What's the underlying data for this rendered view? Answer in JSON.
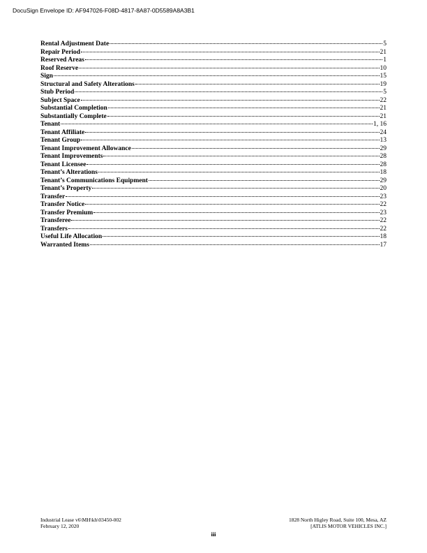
{
  "envelope": "DocuSign Envelope ID: AF947026-F08D-4817-8A87-0D5589A8A3B1",
  "entries": [
    {
      "term": "Rental Adjustment Date",
      "page": "5"
    },
    {
      "term": "Repair Period",
      "page": "21"
    },
    {
      "term": "Reserved Areas",
      "page": "1"
    },
    {
      "term": "Roof Reserve",
      "page": "10"
    },
    {
      "term": "Sign",
      "page": "15"
    },
    {
      "term": "Structural and Safety Alterations",
      "page": "19"
    },
    {
      "term": "Stub Period",
      "page": "5"
    },
    {
      "term": "Subject Space",
      "page": "22"
    },
    {
      "term": "Substantial Completion",
      "page": "21"
    },
    {
      "term": "Substantially Complete",
      "page": "21"
    },
    {
      "term": "Tenant",
      "page": "1, 16"
    },
    {
      "term": "Tenant Affiliate",
      "page": "24"
    },
    {
      "term": "Tenant Group",
      "page": "13"
    },
    {
      "term": "Tenant Improvement Allowance",
      "page": "29"
    },
    {
      "term": "Tenant Improvements",
      "page": "28"
    },
    {
      "term": "Tenant Licensee",
      "page": "28"
    },
    {
      "term": "Tenant’s Alterations",
      "page": "18"
    },
    {
      "term": "Tenant’s Communications Equipment",
      "page": "29"
    },
    {
      "term": "Tenant’s Property",
      "page": "20"
    },
    {
      "term": "Transfer",
      "page": "23"
    },
    {
      "term": "Transfer Notice",
      "page": "22"
    },
    {
      "term": "Transfer Premium",
      "page": "23"
    },
    {
      "term": "Transferee",
      "page": "22"
    },
    {
      "term": "Transfers",
      "page": "22"
    },
    {
      "term": "Useful Life Allocation",
      "page": "18"
    },
    {
      "term": "Warranted Items",
      "page": "17"
    }
  ],
  "footer": {
    "left1": "Industrial Lease v6\\MH\\kh\\03450-002",
    "left2": "February 12, 2020",
    "right1": "1828 North Higley Road, Suite 100, Mesa, AZ",
    "right2": "[ATLIS MOTOR VEHICLES INC.]",
    "page_number": "iii"
  }
}
